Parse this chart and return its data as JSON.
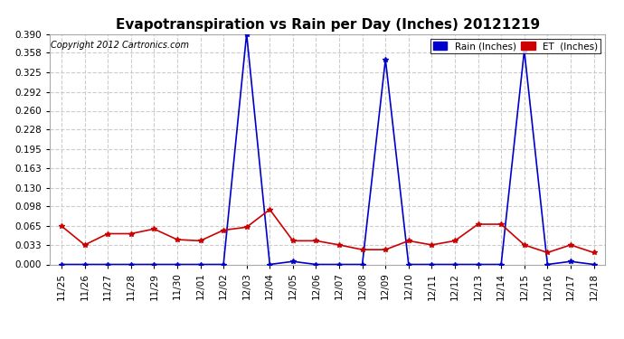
{
  "title": "Evapotranspiration vs Rain per Day (Inches) 20121219",
  "copyright": "Copyright 2012 Cartronics.com",
  "legend_rain": "Rain (Inches)",
  "legend_et": "ET  (Inches)",
  "x_labels": [
    "11/25",
    "11/26",
    "11/27",
    "11/28",
    "11/29",
    "11/30",
    "12/01",
    "12/02",
    "12/03",
    "12/04",
    "12/05",
    "12/06",
    "12/07",
    "12/08",
    "12/09",
    "12/10",
    "12/11",
    "12/12",
    "12/13",
    "12/14",
    "12/15",
    "12/16",
    "12/17",
    "12/18"
  ],
  "rain": [
    0.0,
    0.0,
    0.0,
    0.0,
    0.0,
    0.0,
    0.0,
    0.0,
    0.39,
    0.0,
    0.005,
    0.0,
    0.0,
    0.0,
    0.347,
    0.0,
    0.0,
    0.0,
    0.0,
    0.0,
    0.362,
    0.0,
    0.005,
    0.0
  ],
  "et": [
    0.065,
    0.033,
    0.052,
    0.052,
    0.06,
    0.042,
    0.04,
    0.058,
    0.063,
    0.093,
    0.04,
    0.04,
    0.033,
    0.025,
    0.025,
    0.04,
    0.033,
    0.04,
    0.068,
    0.068,
    0.033,
    0.02,
    0.033,
    0.02
  ],
  "rain_color": "#0000cc",
  "et_color": "#cc0000",
  "bg_color": "#ffffff",
  "grid_color": "#cccccc",
  "ylim": [
    0,
    0.39
  ],
  "yticks": [
    0.0,
    0.033,
    0.065,
    0.098,
    0.13,
    0.163,
    0.195,
    0.228,
    0.26,
    0.292,
    0.325,
    0.358,
    0.39
  ]
}
